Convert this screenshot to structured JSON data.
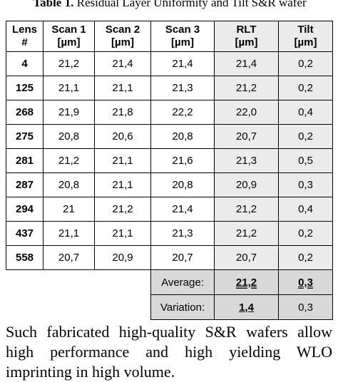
{
  "caption": {
    "label": "Table 1.",
    "text": "Residual Layer Uniformity and Tilt S&R wafer"
  },
  "table": {
    "header": [
      [
        "Lens",
        "#"
      ],
      [
        "Scan 1",
        "[µm]"
      ],
      [
        "Scan 2",
        "[µm]"
      ],
      [
        "Scan 3",
        "[µm]"
      ],
      [
        "RLT",
        "[µm]"
      ],
      [
        "Tilt",
        "[µm]"
      ]
    ],
    "rows": [
      [
        "4",
        "21,2",
        "21,4",
        "21,4",
        "21,4",
        "0,2"
      ],
      [
        "125",
        "21,1",
        "21,1",
        "21,3",
        "21,2",
        "0,2"
      ],
      [
        "268",
        "21,9",
        "21,8",
        "22,2",
        "22,0",
        "0,4"
      ],
      [
        "275",
        "20,8",
        "20,6",
        "20,8",
        "20,7",
        "0,2"
      ],
      [
        "281",
        "21,2",
        "21,1",
        "21,6",
        "21,3",
        "0,5"
      ],
      [
        "287",
        "20,8",
        "21,1",
        "20,8",
        "20,9",
        "0,3"
      ],
      [
        "294",
        "21",
        "21,2",
        "21,4",
        "21,2",
        "0,4"
      ],
      [
        "437",
        "21,1",
        "21,1",
        "21,3",
        "21,2",
        "0,2"
      ],
      [
        "558",
        "20,7",
        "20,9",
        "20,7",
        "20,7",
        "0,2"
      ]
    ],
    "summary": [
      [
        "Average:",
        "21,2",
        "0,3"
      ],
      [
        "Variation:",
        "1,4",
        "0,3"
      ]
    ]
  },
  "paragraph": "Such fabricated high-quality S&R wafers allow high performance and high yielding WLO imprinting in high volume."
}
